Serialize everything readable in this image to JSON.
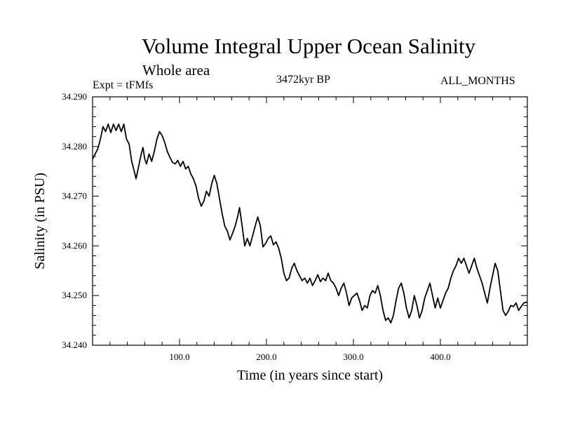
{
  "chart_data": {
    "type": "line",
    "title": "Volume Integral Upper Ocean Salinity",
    "subtitle": "Whole area",
    "experiment": "Expt = tFMfs",
    "period": "3472kyr BP",
    "months": "ALL_MONTHS",
    "xlabel": "Time (in years since start)",
    "ylabel": "Salinity (in PSU)",
    "xlim": [
      0,
      500
    ],
    "ylim": [
      34.24,
      34.29
    ],
    "xticks": [
      100,
      200,
      300,
      400
    ],
    "xtick_labels": [
      "100.0",
      "200.0",
      "300.0",
      "400.0"
    ],
    "yticks": [
      34.24,
      34.25,
      34.26,
      34.27,
      34.28,
      34.29
    ],
    "ytick_labels": [
      "34.240",
      "34.250",
      "34.260",
      "34.270",
      "34.280",
      "34.290"
    ],
    "series": [
      {
        "name": "Salinity",
        "color": "#000000",
        "points": [
          [
            0,
            34.2775
          ],
          [
            3,
            34.2785
          ],
          [
            6,
            34.2795
          ],
          [
            9,
            34.2815
          ],
          [
            12,
            34.284
          ],
          [
            15,
            34.283
          ],
          [
            18,
            34.2845
          ],
          [
            21,
            34.2828
          ],
          [
            24,
            34.2845
          ],
          [
            27,
            34.2832
          ],
          [
            30,
            34.2845
          ],
          [
            33,
            34.283
          ],
          [
            36,
            34.2845
          ],
          [
            39,
            34.2815
          ],
          [
            42,
            34.2805
          ],
          [
            45,
            34.277
          ],
          [
            48,
            34.275
          ],
          [
            50,
            34.2735
          ],
          [
            53,
            34.276
          ],
          [
            56,
            34.2785
          ],
          [
            58,
            34.2798
          ],
          [
            60,
            34.2775
          ],
          [
            62,
            34.2765
          ],
          [
            65,
            34.2785
          ],
          [
            68,
            34.277
          ],
          [
            71,
            34.279
          ],
          [
            74,
            34.2815
          ],
          [
            77,
            34.283
          ],
          [
            80,
            34.2822
          ],
          [
            83,
            34.2808
          ],
          [
            86,
            34.279
          ],
          [
            89,
            34.2778
          ],
          [
            92,
            34.2768
          ],
          [
            95,
            34.2765
          ],
          [
            98,
            34.2772
          ],
          [
            101,
            34.276
          ],
          [
            104,
            34.277
          ],
          [
            107,
            34.2755
          ],
          [
            110,
            34.276
          ],
          [
            113,
            34.2745
          ],
          [
            116,
            34.2735
          ],
          [
            119,
            34.272
          ],
          [
            122,
            34.2695
          ],
          [
            125,
            34.268
          ],
          [
            128,
            34.269
          ],
          [
            131,
            34.271
          ],
          [
            134,
            34.27
          ],
          [
            137,
            34.2725
          ],
          [
            140,
            34.2742
          ],
          [
            143,
            34.2725
          ],
          [
            146,
            34.2695
          ],
          [
            149,
            34.2665
          ],
          [
            152,
            34.264
          ],
          [
            155,
            34.263
          ],
          [
            158,
            34.2612
          ],
          [
            161,
            34.2625
          ],
          [
            164,
            34.264
          ],
          [
            167,
            34.266
          ],
          [
            169,
            34.2677
          ],
          [
            172,
            34.264
          ],
          [
            175,
            34.26
          ],
          [
            178,
            34.2615
          ],
          [
            181,
            34.26
          ],
          [
            184,
            34.262
          ],
          [
            187,
            34.264
          ],
          [
            190,
            34.2658
          ],
          [
            193,
            34.264
          ],
          [
            196,
            34.2598
          ],
          [
            199,
            34.2605
          ],
          [
            202,
            34.2615
          ],
          [
            205,
            34.262
          ],
          [
            208,
            34.2602
          ],
          [
            211,
            34.2608
          ],
          [
            214,
            34.2595
          ],
          [
            217,
            34.2575
          ],
          [
            220,
            34.2545
          ],
          [
            223,
            34.253
          ],
          [
            226,
            34.2535
          ],
          [
            229,
            34.2555
          ],
          [
            232,
            34.2565
          ],
          [
            235,
            34.255
          ],
          [
            238,
            34.254
          ],
          [
            241,
            34.253
          ],
          [
            244,
            34.2535
          ],
          [
            247,
            34.2525
          ],
          [
            250,
            34.2535
          ],
          [
            253,
            34.252
          ],
          [
            256,
            34.253
          ],
          [
            259,
            34.2542
          ],
          [
            262,
            34.2528
          ],
          [
            265,
            34.2535
          ],
          [
            268,
            34.253
          ],
          [
            271,
            34.2545
          ],
          [
            274,
            34.253
          ],
          [
            277,
            34.2525
          ],
          [
            280,
            34.2515
          ],
          [
            283,
            34.25
          ],
          [
            286,
            34.2515
          ],
          [
            289,
            34.2525
          ],
          [
            292,
            34.2505
          ],
          [
            295,
            34.248
          ],
          [
            298,
            34.2495
          ],
          [
            301,
            34.25
          ],
          [
            304,
            34.2505
          ],
          [
            307,
            34.249
          ],
          [
            310,
            34.247
          ],
          [
            313,
            34.248
          ],
          [
            316,
            34.2475
          ],
          [
            319,
            34.25
          ],
          [
            322,
            34.251
          ],
          [
            325,
            34.2505
          ],
          [
            328,
            34.252
          ],
          [
            331,
            34.25
          ],
          [
            334,
            34.247
          ],
          [
            337,
            34.245
          ],
          [
            340,
            34.2455
          ],
          [
            343,
            34.2445
          ],
          [
            346,
            34.246
          ],
          [
            349,
            34.249
          ],
          [
            352,
            34.2515
          ],
          [
            355,
            34.2525
          ],
          [
            358,
            34.2505
          ],
          [
            361,
            34.2475
          ],
          [
            364,
            34.2455
          ],
          [
            367,
            34.247
          ],
          [
            370,
            34.25
          ],
          [
            373,
            34.248
          ],
          [
            376,
            34.2455
          ],
          [
            379,
            34.247
          ],
          [
            382,
            34.2495
          ],
          [
            385,
            34.251
          ],
          [
            388,
            34.2525
          ],
          [
            391,
            34.25
          ],
          [
            394,
            34.2475
          ],
          [
            397,
            34.2495
          ],
          [
            400,
            34.2475
          ],
          [
            403,
            34.249
          ],
          [
            406,
            34.2505
          ],
          [
            409,
            34.2515
          ],
          [
            412,
            34.2535
          ],
          [
            415,
            34.255
          ],
          [
            418,
            34.256
          ],
          [
            421,
            34.2575
          ],
          [
            424,
            34.2565
          ],
          [
            427,
            34.2575
          ],
          [
            430,
            34.256
          ],
          [
            433,
            34.2545
          ],
          [
            436,
            34.256
          ],
          [
            439,
            34.2575
          ],
          [
            442,
            34.2555
          ],
          [
            445,
            34.254
          ],
          [
            448,
            34.2525
          ],
          [
            451,
            34.2505
          ],
          [
            454,
            34.2485
          ],
          [
            457,
            34.2515
          ],
          [
            460,
            34.254
          ],
          [
            463,
            34.2565
          ],
          [
            466,
            34.255
          ],
          [
            469,
            34.251
          ],
          [
            472,
            34.247
          ],
          [
            475,
            34.246
          ],
          [
            478,
            34.2468
          ],
          [
            481,
            34.248
          ],
          [
            484,
            34.2478
          ],
          [
            487,
            34.2485
          ],
          [
            490,
            34.247
          ],
          [
            493,
            34.2478
          ],
          [
            496,
            34.2485
          ],
          [
            500,
            34.2487
          ]
        ]
      }
    ]
  }
}
